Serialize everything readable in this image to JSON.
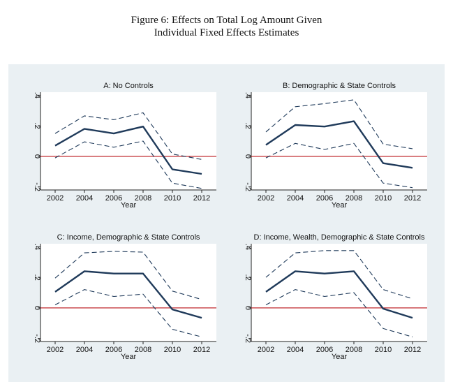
{
  "figure": {
    "title_line1": "Figure 6: Effects on Total Log Amount Given",
    "title_line2": "Individual Fixed Effects Estimates"
  },
  "colors": {
    "estimate_line": "#1f3a5a",
    "ci_line": "#1f3a5a",
    "zero_line": "#c0282e",
    "panel_background": "#eaf0f3",
    "plot_background": "#ffffff"
  },
  "chart_data": [
    {
      "type": "line",
      "title": "A: No Controls",
      "xlabel": "Year",
      "ylabel": "",
      "x": [
        2002,
        2004,
        2006,
        2008,
        2010,
        2012
      ],
      "xticks": [
        "2002",
        "2004",
        "2006",
        "2008",
        "2010",
        "2012"
      ],
      "yticks": [
        "-.2",
        "0",
        ".2",
        ".4"
      ],
      "ylim": [
        -0.22,
        0.42
      ],
      "reference_line": 0,
      "series": [
        {
          "role": "upper",
          "style": "dashed",
          "values": [
            0.15,
            0.265,
            0.24,
            0.285,
            0.015,
            -0.02
          ]
        },
        {
          "role": "estimate",
          "style": "solid",
          "values": [
            0.07,
            0.18,
            0.15,
            0.195,
            -0.085,
            -0.115
          ]
        },
        {
          "role": "lower",
          "style": "dashed",
          "values": [
            -0.01,
            0.095,
            0.06,
            0.1,
            -0.175,
            -0.21
          ]
        }
      ]
    },
    {
      "type": "line",
      "title": "B: Demographic & State Controls",
      "xlabel": "Year",
      "ylabel": "",
      "x": [
        2002,
        2004,
        2006,
        2008,
        2010,
        2012
      ],
      "xticks": [
        "2002",
        "2004",
        "2006",
        "2008",
        "2010",
        "2012"
      ],
      "yticks": [
        "-.2",
        "0",
        ".2",
        ".4"
      ],
      "ylim": [
        -0.22,
        0.42
      ],
      "reference_line": 0,
      "series": [
        {
          "role": "upper",
          "style": "dashed",
          "values": [
            0.16,
            0.325,
            0.345,
            0.37,
            0.08,
            0.05
          ]
        },
        {
          "role": "estimate",
          "style": "solid",
          "values": [
            0.075,
            0.205,
            0.195,
            0.23,
            -0.045,
            -0.075
          ]
        },
        {
          "role": "lower",
          "style": "dashed",
          "values": [
            -0.01,
            0.085,
            0.045,
            0.085,
            -0.175,
            -0.205
          ]
        }
      ]
    },
    {
      "type": "line",
      "title": "C: Income, Demographic & State Controls",
      "xlabel": "Year",
      "ylabel": "",
      "x": [
        2002,
        2004,
        2006,
        2008,
        2010,
        2012
      ],
      "xticks": [
        "2002",
        "2004",
        "2006",
        "2008",
        "2010",
        "2012"
      ],
      "yticks": [
        "-.2",
        "0",
        ".2",
        ".4"
      ],
      "ylim": [
        -0.22,
        0.42
      ],
      "reference_line": 0,
      "series": [
        {
          "role": "upper",
          "style": "dashed",
          "values": [
            0.195,
            0.36,
            0.37,
            0.365,
            0.11,
            0.055
          ]
        },
        {
          "role": "estimate",
          "style": "solid",
          "values": [
            0.105,
            0.24,
            0.225,
            0.225,
            -0.01,
            -0.065
          ]
        },
        {
          "role": "lower",
          "style": "dashed",
          "values": [
            0.02,
            0.12,
            0.075,
            0.09,
            -0.14,
            -0.19
          ]
        }
      ]
    },
    {
      "type": "line",
      "title": "D: Income, Wealth, Demographic & State Controls",
      "xlabel": "Year",
      "ylabel": "",
      "x": [
        2002,
        2004,
        2006,
        2008,
        2010,
        2012
      ],
      "xticks": [
        "2002",
        "2004",
        "2006",
        "2008",
        "2010",
        "2012"
      ],
      "yticks": [
        "-.2",
        "0",
        ".2",
        ".4"
      ],
      "ylim": [
        -0.22,
        0.42
      ],
      "reference_line": 0,
      "series": [
        {
          "role": "upper",
          "style": "dashed",
          "values": [
            0.2,
            0.36,
            0.375,
            0.375,
            0.12,
            0.06
          ]
        },
        {
          "role": "estimate",
          "style": "solid",
          "values": [
            0.105,
            0.24,
            0.225,
            0.24,
            -0.005,
            -0.065
          ]
        },
        {
          "role": "lower",
          "style": "dashed",
          "values": [
            0.02,
            0.12,
            0.075,
            0.1,
            -0.135,
            -0.19
          ]
        }
      ]
    }
  ]
}
